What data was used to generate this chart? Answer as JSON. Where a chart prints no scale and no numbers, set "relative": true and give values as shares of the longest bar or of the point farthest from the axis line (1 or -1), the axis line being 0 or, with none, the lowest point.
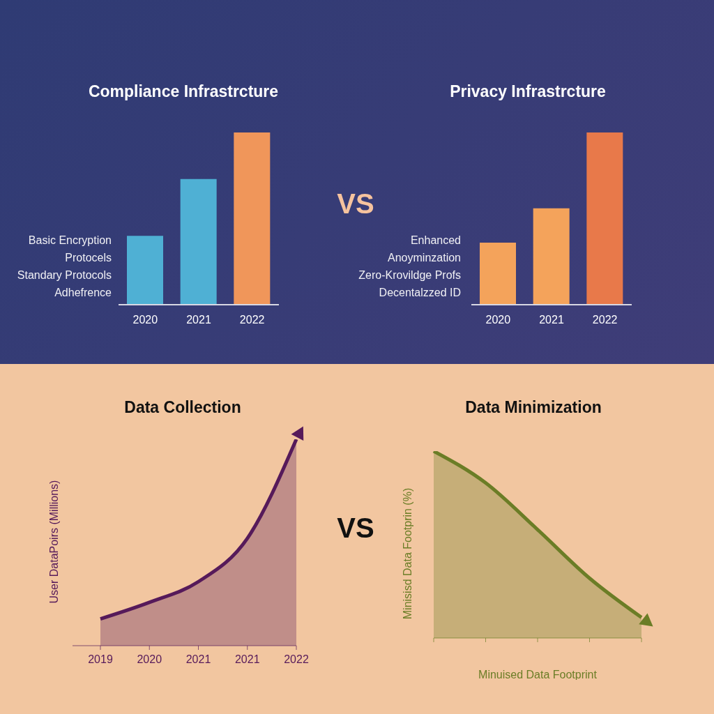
{
  "chart_data": [
    {
      "type": "bar",
      "title": "Compliance Infrastrcture",
      "categories": [
        "2020",
        "2021",
        "2022"
      ],
      "relative": true,
      "values": [
        0.4,
        0.73,
        1
      ],
      "colors": [
        "#4fb0d4",
        "#4fb0d4",
        "#f0965a"
      ],
      "annotations": [
        "Basic Encryption",
        "Protocels",
        "Standary Protocols",
        "Adhefrence"
      ]
    },
    {
      "type": "other",
      "annotations": [
        "VS"
      ]
    },
    {
      "type": "bar",
      "title": "Privacy Infrastrcture",
      "categories": [
        "2020",
        "2021",
        "2022"
      ],
      "relative": true,
      "values": [
        0.36,
        0.56,
        1
      ],
      "colors": [
        "#f4a35b",
        "#f4a35b",
        "#e8794a"
      ],
      "annotations": [
        "Enhanced",
        "Anoyminzation",
        "Zero-Krovildge Profs",
        "Decentalzzed ID"
      ]
    },
    {
      "type": "area",
      "title": "Data Collection",
      "ylabel": "User DataPoirs (Millions)",
      "categories": [
        "2019",
        "2020",
        "2021",
        "2021",
        "2022"
      ],
      "relative": true,
      "series": [
        {
          "color": "#561a5a",
          "values": [
            0.13,
            0.21,
            0.31,
            0.52,
            1
          ]
        }
      ]
    },
    {
      "type": "other",
      "annotations": [
        "VS"
      ]
    },
    {
      "type": "area",
      "title": "Data Minimization",
      "xlabel": "Minuised Data Footprint",
      "ylabel": "Minisisd Data Footprin (%)",
      "categories": [
        null,
        null,
        null,
        null,
        null
      ],
      "relative": true,
      "series": [
        {
          "color": "#6b7d26",
          "values": [
            1,
            0.83,
            0.58,
            0.32,
            0.11
          ]
        }
      ]
    }
  ]
}
